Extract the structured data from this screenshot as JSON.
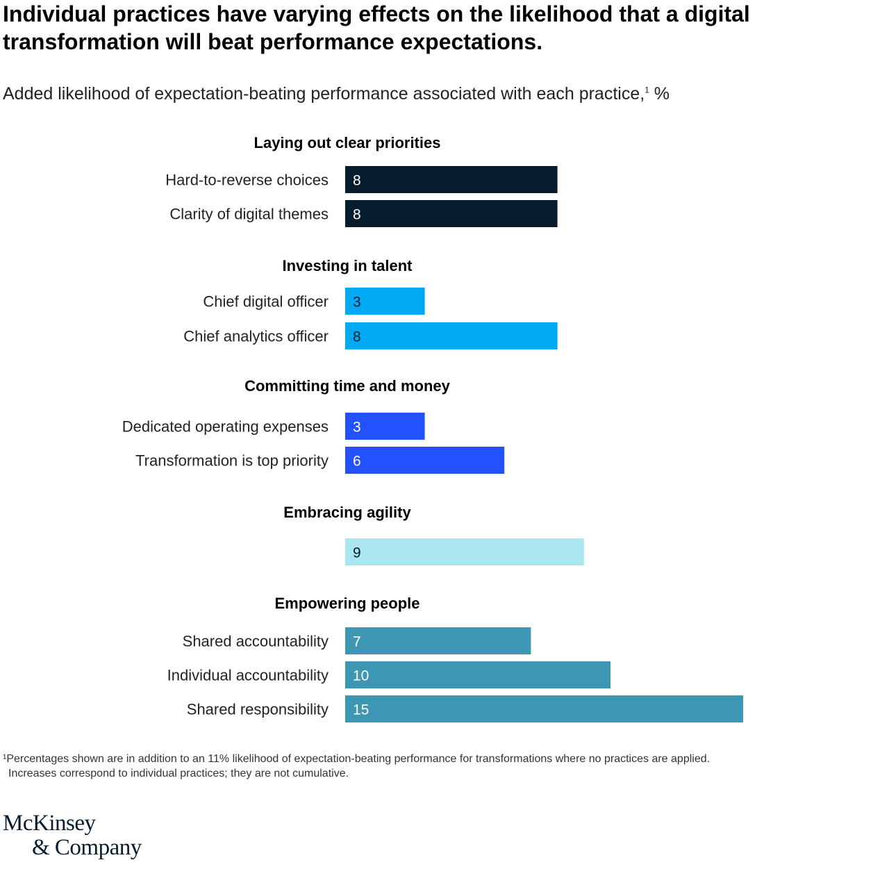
{
  "header": {
    "title": "Individual practices have varying effects on the likelihood that a digital transformation will beat performance expectations.",
    "subtitle": "Added likelihood of expectation-beating performance associated with each practice,",
    "subtitle_sup": "1",
    "subtitle_unit": " %"
  },
  "chart_data": {
    "type": "bar",
    "orientation": "horizontal",
    "title": "Added likelihood of expectation-beating performance associated with each practice, %",
    "xlabel": "",
    "ylabel": "",
    "xlim": [
      0,
      15
    ],
    "grid": false,
    "groups": [
      {
        "name": "Laying out clear priorities",
        "color": "#051c2c",
        "text_color": "#ffffff",
        "items": [
          {
            "label": "Hard-to-reverse choices",
            "value": 8
          },
          {
            "label": "Clarity of digital themes",
            "value": 8
          }
        ]
      },
      {
        "name": "Investing in talent",
        "color": "#00a9f4",
        "text_color": "#051c2c",
        "items": [
          {
            "label": "Chief digital officer",
            "value": 3
          },
          {
            "label": "Chief analytics officer",
            "value": 8
          }
        ]
      },
      {
        "name": "Committing time and money",
        "color": "#2251ff",
        "text_color": "#ffffff",
        "items": [
          {
            "label": "Dedicated operating expenses",
            "value": 3
          },
          {
            "label": "Transformation is top priority",
            "value": 6
          }
        ]
      },
      {
        "name": "Embracing agility",
        "color": "#aae6f0",
        "text_color": "#051c2c",
        "items": [
          {
            "label": "",
            "value": 9
          }
        ]
      },
      {
        "name": "Empowering people",
        "color": "#3c96b4",
        "text_color": "#ffffff",
        "items": [
          {
            "label": "Shared accountability",
            "value": 7
          },
          {
            "label": "Individual accountability",
            "value": 10
          },
          {
            "label": "Shared responsibility",
            "value": 15
          }
        ]
      }
    ]
  },
  "footnote": {
    "line1": "¹Percentages shown are in addition to an 11% likelihood of expectation-beating performance for transformations where no practices are applied.",
    "line2": "Increases correspond to individual practices; they are not cumulative."
  },
  "logo": {
    "line1": "McKinsey",
    "line2": "& Company"
  }
}
